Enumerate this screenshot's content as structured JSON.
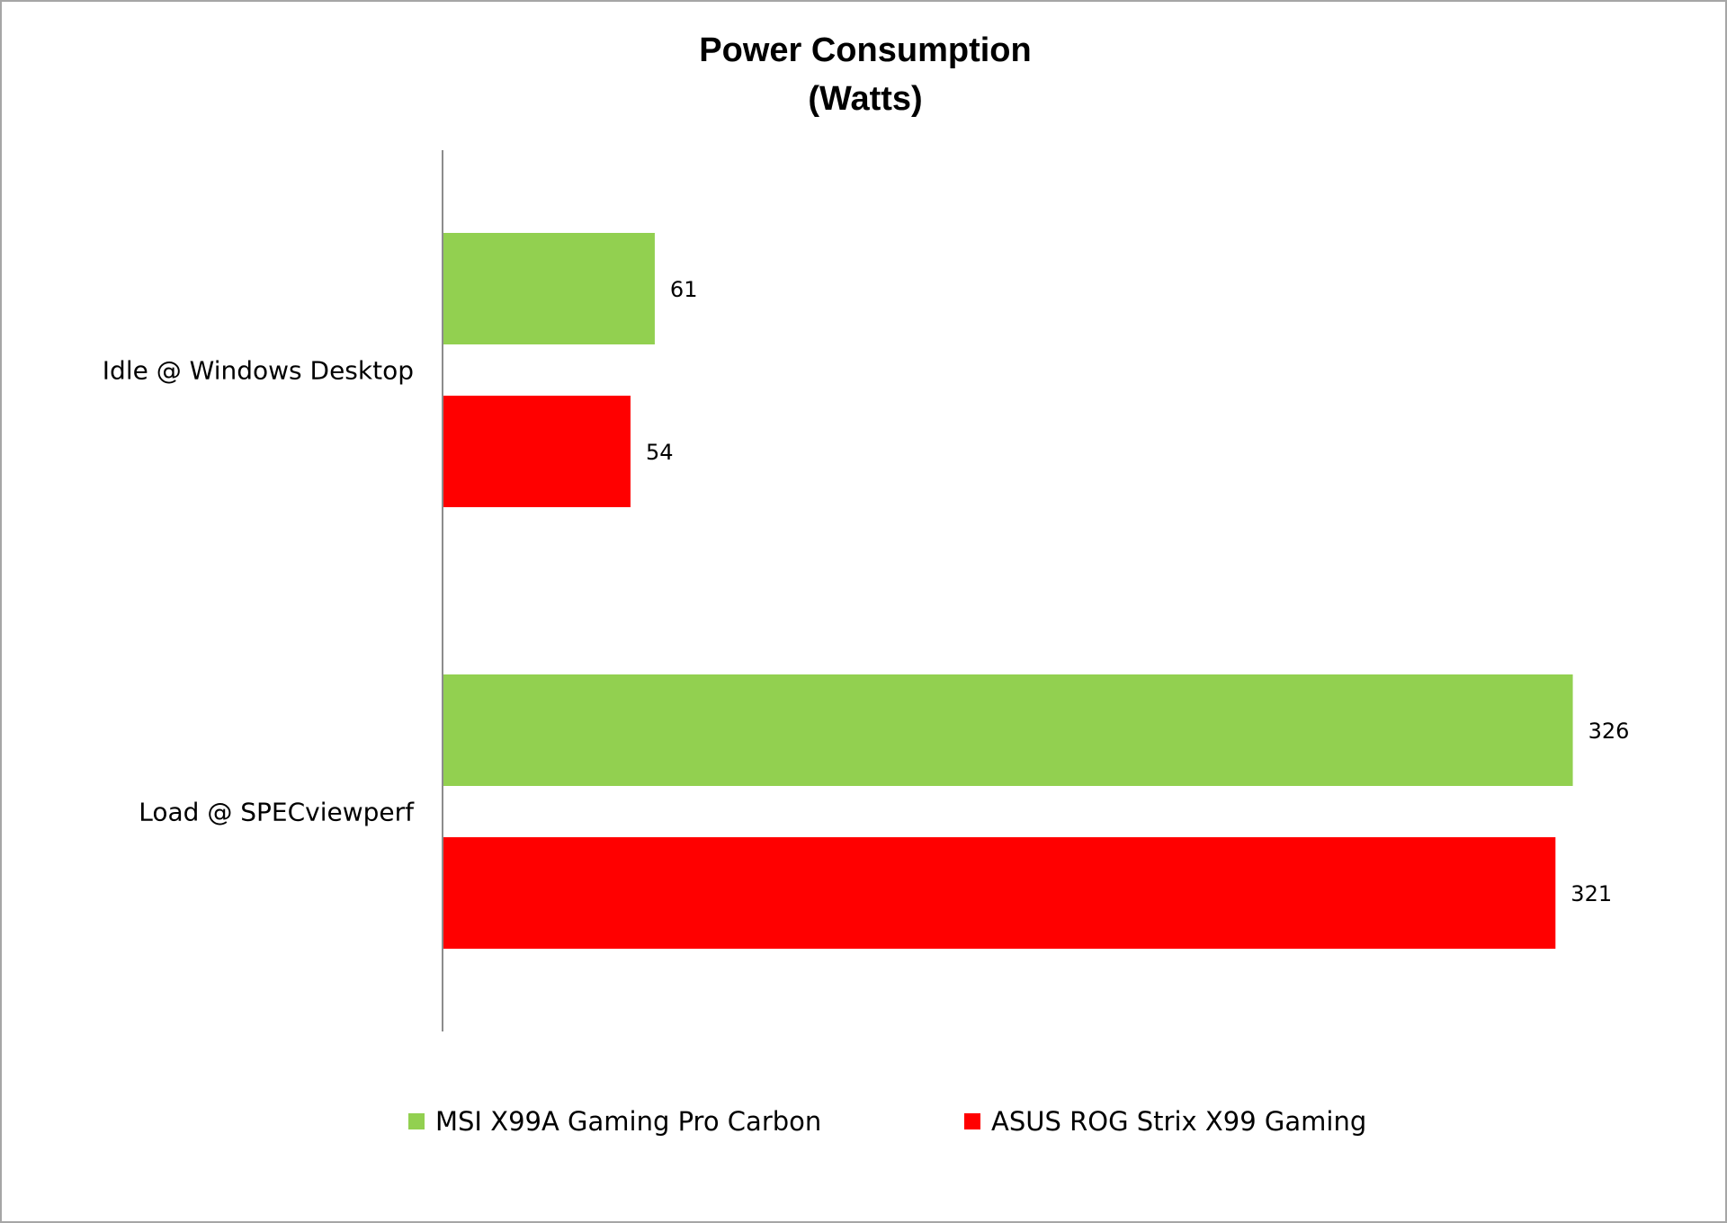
{
  "chart_data": {
    "type": "bar",
    "orientation": "horizontal",
    "title": [
      "Power Consumption",
      "(Watts)"
    ],
    "categories": [
      "Idle @ Windows Desktop",
      "Load @ SPECviewperf"
    ],
    "series": [
      {
        "name": "MSI X99A Gaming Pro Carbon",
        "color": "#92d050",
        "values": [
          61,
          326
        ]
      },
      {
        "name": "ASUS ROG Strix X99 Gaming",
        "color": "#ff0000",
        "values": [
          54,
          321
        ]
      }
    ],
    "xlim": [
      0,
      350
    ],
    "grid": false,
    "legend_position": "bottom"
  }
}
